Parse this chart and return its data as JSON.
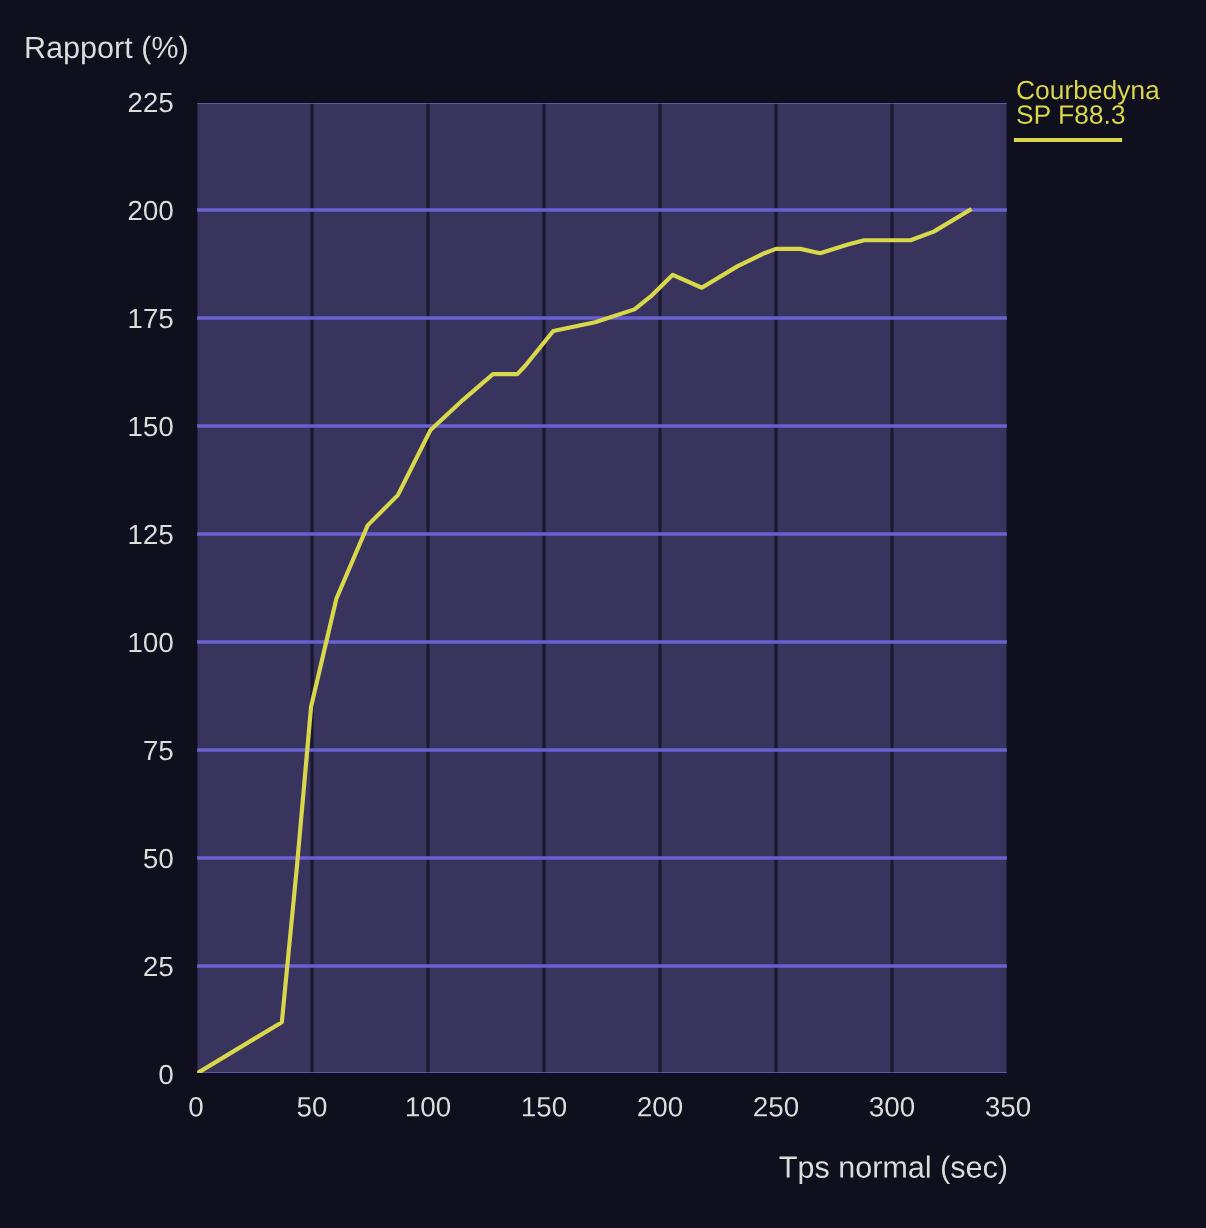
{
  "chart_data": {
    "type": "line",
    "xlabel": "Tps normal (sec)",
    "ylabel": "Rapport (%)",
    "xlim": [
      0,
      350
    ],
    "xticks": [
      0,
      50,
      100,
      150,
      200,
      250,
      300,
      350
    ],
    "ylim": [
      0,
      225
    ],
    "yticks": [
      0,
      25,
      50,
      75,
      100,
      125,
      150,
      175,
      200,
      225
    ],
    "grid": true,
    "legend": "top right",
    "marker": "none",
    "line_style": "solid",
    "series": [
      {
        "name": "Courbedyna\nSP F88.3",
        "color": "#d8d84a",
        "x": [
          0,
          37,
          43.5,
          49.6,
          60.5,
          74,
          87,
          101,
          115,
          128,
          138.5,
          142,
          154,
          172,
          189,
          196,
          205.5,
          218,
          233.5,
          245,
          250,
          260.5,
          269,
          281,
          288,
          308,
          318,
          333.5
        ],
        "values": [
          0,
          12,
          48,
          85,
          110,
          127,
          134,
          149,
          156,
          162,
          162,
          164,
          172,
          174,
          177,
          180,
          185,
          182,
          187,
          190,
          191,
          191,
          190,
          192,
          193,
          193,
          195,
          200
        ]
      }
    ]
  }
}
